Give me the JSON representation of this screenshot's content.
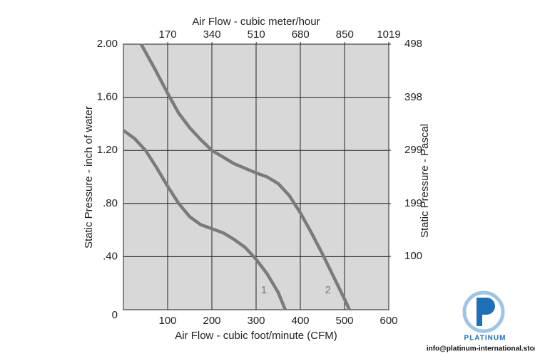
{
  "chart_data": {
    "type": "line",
    "x_label": "Air Flow - cubic foot/minute (CFM)",
    "x2_label": "Air Flow - cubic meter/hour",
    "y_label": "Static Pressure - inch of water",
    "y2_label": "Static Pressure - Pascal",
    "xlim": [
      0,
      600
    ],
    "xticks": [
      100,
      200,
      300,
      400,
      500,
      600
    ],
    "x2lim": [
      0,
      1019
    ],
    "x2ticks": [
      170,
      340,
      510,
      680,
      850,
      1019
    ],
    "ylim": [
      0,
      2.0
    ],
    "yticks": [
      0,
      {
        "value": 0.4,
        "label": ".40"
      },
      {
        "value": 0.8,
        "label": ".80"
      },
      {
        "value": 1.2,
        "label": "1.20"
      },
      {
        "value": 1.6,
        "label": "1.60"
      },
      {
        "value": 2.0,
        "label": "2.00"
      }
    ],
    "y2lim": [
      0,
      498
    ],
    "y2ticks": [
      100,
      199,
      299,
      398,
      498
    ],
    "grid": true,
    "background": "#d8d8d8",
    "series": [
      {
        "name": "1",
        "color": "#7b7b7b",
        "x": [
          0,
          25,
          50,
          75,
          100,
          125,
          150,
          175,
          200,
          225,
          250,
          275,
          300,
          325,
          350,
          366
        ],
        "values": [
          1.35,
          1.29,
          1.2,
          1.07,
          0.93,
          0.8,
          0.7,
          0.64,
          0.61,
          0.58,
          0.53,
          0.47,
          0.38,
          0.27,
          0.13,
          0
        ]
      },
      {
        "name": "2",
        "color": "#7b7b7b",
        "x": [
          40,
          70,
          100,
          125,
          150,
          175,
          200,
          250,
          300,
          325,
          350,
          375,
          400,
          425,
          450,
          475,
          500,
          511
        ],
        "values": [
          2.0,
          1.82,
          1.63,
          1.48,
          1.37,
          1.28,
          1.2,
          1.1,
          1.03,
          1.0,
          0.95,
          0.86,
          0.73,
          0.58,
          0.42,
          0.25,
          0.08,
          0
        ]
      }
    ]
  },
  "logo": {
    "brand": "PLATINUM",
    "email": "info@platinum-international.store"
  }
}
